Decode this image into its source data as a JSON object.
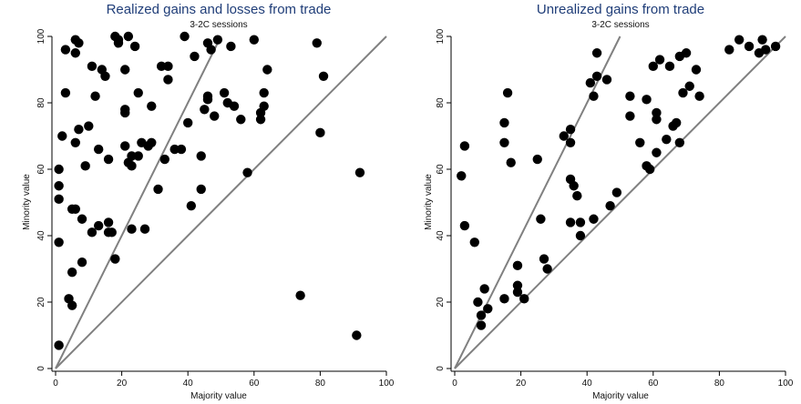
{
  "chart_data": [
    {
      "type": "scatter",
      "title": "Realized gains and losses from trade",
      "subtitle": "3-2C sessions",
      "xlabel": "Majority value",
      "ylabel": "Minority value",
      "xlim": [
        0,
        100
      ],
      "ylim": [
        0,
        100
      ],
      "xticks": [
        "0",
        "20",
        "40",
        "60",
        "80",
        "100"
      ],
      "yticks": [
        "0",
        "20",
        "40",
        "60",
        "80",
        "100"
      ],
      "lines": [
        {
          "from": [
            0,
            0
          ],
          "to": [
            50,
            100
          ]
        },
        {
          "from": [
            0,
            0
          ],
          "to": [
            100,
            100
          ]
        }
      ],
      "points": [
        [
          1,
          7
        ],
        [
          1,
          38
        ],
        [
          1,
          51
        ],
        [
          1,
          55
        ],
        [
          1,
          60
        ],
        [
          2,
          70
        ],
        [
          3,
          83
        ],
        [
          3,
          96
        ],
        [
          4,
          21
        ],
        [
          5,
          19
        ],
        [
          5,
          29
        ],
        [
          5,
          48
        ],
        [
          6,
          48
        ],
        [
          6,
          95
        ],
        [
          6,
          99
        ],
        [
          6,
          68
        ],
        [
          7,
          98
        ],
        [
          7,
          72
        ],
        [
          8,
          32
        ],
        [
          8,
          45
        ],
        [
          9,
          61
        ],
        [
          10,
          73
        ],
        [
          11,
          41
        ],
        [
          11,
          91
        ],
        [
          12,
          82
        ],
        [
          13,
          43
        ],
        [
          13,
          66
        ],
        [
          14,
          90
        ],
        [
          15,
          88
        ],
        [
          16,
          44
        ],
        [
          16,
          41
        ],
        [
          16,
          63
        ],
        [
          17,
          41
        ],
        [
          18,
          33
        ],
        [
          18,
          100
        ],
        [
          19,
          98
        ],
        [
          19,
          99
        ],
        [
          21,
          90
        ],
        [
          21,
          78
        ],
        [
          21,
          77
        ],
        [
          21,
          67
        ],
        [
          22,
          62
        ],
        [
          22,
          100
        ],
        [
          23,
          64
        ],
        [
          23,
          61
        ],
        [
          23,
          42
        ],
        [
          24,
          97
        ],
        [
          25,
          64
        ],
        [
          25,
          83
        ],
        [
          26,
          68
        ],
        [
          27,
          42
        ],
        [
          28,
          67
        ],
        [
          29,
          79
        ],
        [
          29,
          68
        ],
        [
          31,
          54
        ],
        [
          32,
          91
        ],
        [
          33,
          63
        ],
        [
          34,
          91
        ],
        [
          34,
          87
        ],
        [
          36,
          66
        ],
        [
          38,
          66
        ],
        [
          39,
          100
        ],
        [
          40,
          74
        ],
        [
          41,
          49
        ],
        [
          42,
          94
        ],
        [
          44,
          64
        ],
        [
          44,
          54
        ],
        [
          45,
          78
        ],
        [
          46,
          98
        ],
        [
          46,
          82
        ],
        [
          46,
          81
        ],
        [
          47,
          96
        ],
        [
          48,
          76
        ],
        [
          49,
          99
        ],
        [
          51,
          83
        ],
        [
          52,
          80
        ],
        [
          53,
          97
        ],
        [
          54,
          79
        ],
        [
          56,
          75
        ],
        [
          58,
          59
        ],
        [
          60,
          99
        ],
        [
          62,
          77
        ],
        [
          62,
          75
        ],
        [
          63,
          79
        ],
        [
          63,
          83
        ],
        [
          64,
          90
        ],
        [
          74,
          22
        ],
        [
          79,
          98
        ],
        [
          80,
          71
        ],
        [
          81,
          88
        ],
        [
          91,
          10
        ],
        [
          92,
          59
        ]
      ]
    },
    {
      "type": "scatter",
      "title": "Unrealized gains from trade",
      "subtitle": "3-2C sessions",
      "xlabel": "Majority value",
      "ylabel": "Minority value",
      "xlim": [
        0,
        100
      ],
      "ylim": [
        0,
        100
      ],
      "xticks": [
        "0",
        "20",
        "40",
        "60",
        "80",
        "100"
      ],
      "yticks": [
        "0",
        "20",
        "40",
        "60",
        "80",
        "100"
      ],
      "lines": [
        {
          "from": [
            0,
            0
          ],
          "to": [
            50,
            100
          ]
        },
        {
          "from": [
            0,
            0
          ],
          "to": [
            100,
            100
          ]
        }
      ],
      "points": [
        [
          2,
          58
        ],
        [
          3,
          43
        ],
        [
          3,
          67
        ],
        [
          6,
          38
        ],
        [
          7,
          20
        ],
        [
          8,
          16
        ],
        [
          8,
          13
        ],
        [
          9,
          24
        ],
        [
          10,
          18
        ],
        [
          15,
          21
        ],
        [
          15,
          74
        ],
        [
          15,
          68
        ],
        [
          16,
          83
        ],
        [
          17,
          62
        ],
        [
          19,
          31
        ],
        [
          19,
          25
        ],
        [
          19,
          23
        ],
        [
          21,
          21
        ],
        [
          25,
          63
        ],
        [
          26,
          45
        ],
        [
          27,
          33
        ],
        [
          28,
          30
        ],
        [
          33,
          70
        ],
        [
          35,
          44
        ],
        [
          35,
          57
        ],
        [
          35,
          72
        ],
        [
          35,
          68
        ],
        [
          36,
          55
        ],
        [
          37,
          52
        ],
        [
          38,
          40
        ],
        [
          38,
          44
        ],
        [
          41,
          86
        ],
        [
          42,
          82
        ],
        [
          42,
          45
        ],
        [
          43,
          88
        ],
        [
          43,
          95
        ],
        [
          46,
          87
        ],
        [
          47,
          49
        ],
        [
          49,
          53
        ],
        [
          53,
          76
        ],
        [
          53,
          82
        ],
        [
          56,
          68
        ],
        [
          58,
          61
        ],
        [
          58,
          81
        ],
        [
          59,
          60
        ],
        [
          60,
          91
        ],
        [
          61,
          77
        ],
        [
          61,
          75
        ],
        [
          61,
          65
        ],
        [
          62,
          93
        ],
        [
          64,
          69
        ],
        [
          65,
          91
        ],
        [
          66,
          73
        ],
        [
          67,
          74
        ],
        [
          68,
          94
        ],
        [
          68,
          68
        ],
        [
          69,
          83
        ],
        [
          70,
          95
        ],
        [
          71,
          85
        ],
        [
          73,
          90
        ],
        [
          74,
          82
        ],
        [
          83,
          96
        ],
        [
          86,
          99
        ],
        [
          89,
          97
        ],
        [
          92,
          95
        ],
        [
          93,
          99
        ],
        [
          94,
          96
        ],
        [
          97,
          97
        ]
      ]
    }
  ]
}
